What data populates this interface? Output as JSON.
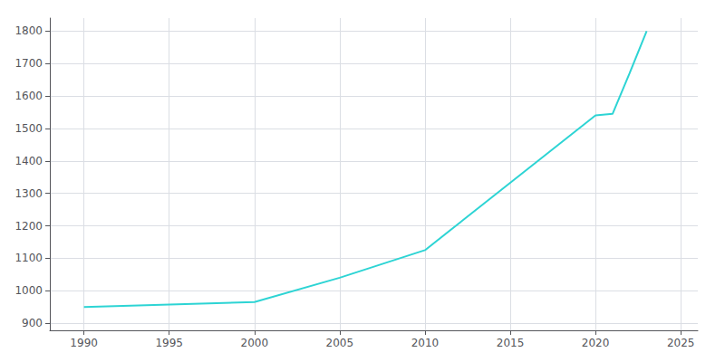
{
  "chart_data": {
    "type": "line",
    "x": [
      1990,
      2000,
      2005,
      2010,
      2020,
      2021,
      2022,
      2023
    ],
    "values": [
      950,
      965,
      1040,
      1125,
      1540,
      1545,
      1670,
      1800
    ],
    "color": "#2dd4d4",
    "xlim": [
      1988,
      2026
    ],
    "ylim": [
      878,
      1840
    ],
    "xticks": [
      1990,
      1995,
      2000,
      2005,
      2010,
      2015,
      2020,
      2025
    ],
    "yticks": [
      900,
      1000,
      1100,
      1200,
      1300,
      1400,
      1500,
      1600,
      1700,
      1800
    ],
    "grid": true
  }
}
